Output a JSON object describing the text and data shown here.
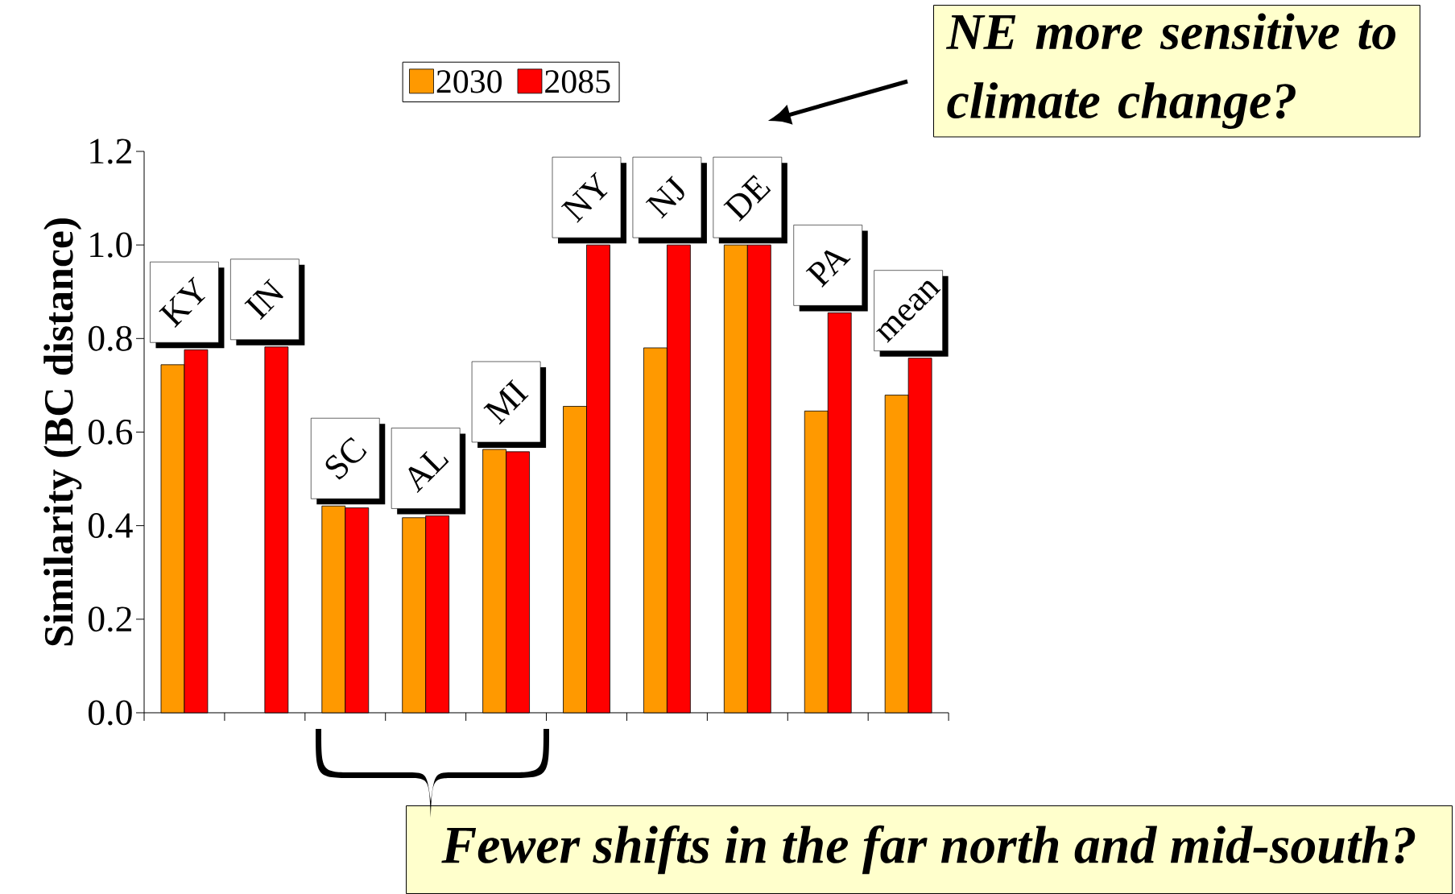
{
  "chart_data": {
    "type": "bar",
    "ylabel": "Similarity (BC distance)",
    "categories": [
      "KY",
      "IN",
      "SC",
      "AL",
      "MI",
      "NY",
      "NJ",
      "DE",
      "PA",
      "mean"
    ],
    "series": [
      {
        "name": "2030",
        "color": "#ff9900",
        "values": [
          0.744,
          null,
          0.442,
          0.417,
          0.563,
          0.655,
          0.78,
          1.0,
          0.645,
          0.679
        ]
      },
      {
        "name": "2085",
        "color": "#ff0000",
        "values": [
          0.776,
          0.782,
          0.438,
          0.421,
          0.558,
          1.0,
          1.0,
          1.0,
          0.855,
          0.758
        ]
      }
    ],
    "ylim": [
      0,
      1.2
    ],
    "yticks": [
      {
        "value": 0,
        "label": "0.0"
      },
      {
        "value": 0.2,
        "label": "0.2"
      },
      {
        "value": 0.4,
        "label": "0.4"
      },
      {
        "value": 0.6,
        "label": "0.6"
      },
      {
        "value": 0.8,
        "label": "0.8"
      },
      {
        "value": 1.0,
        "label": "1.0"
      },
      {
        "value": 1.2,
        "label": "1.2"
      }
    ],
    "tick_labels": "y",
    "grid": false,
    "legend": "top",
    "annotations": [
      "NE more sensitive to climate change?",
      "Fewer shifts in the far north and mid-south?"
    ]
  }
}
